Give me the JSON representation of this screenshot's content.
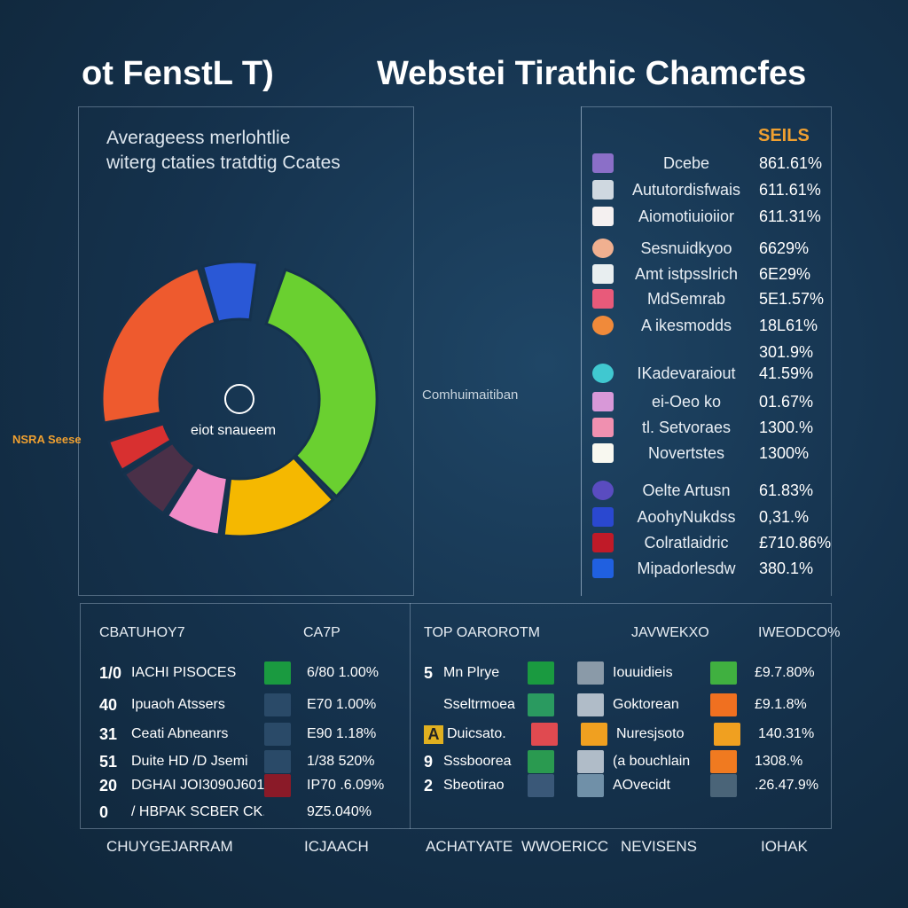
{
  "header": {
    "title_left": "ot FenstL T)",
    "title_right": "Webstei Tirathic Chamcfes"
  },
  "subtitle": [
    "Averageess merlohtlie",
    "witerg ctaties tratdtig Ccates"
  ],
  "mid_label": "Comhuimaitiban",
  "side_label": "NSRA Seese",
  "colors": {
    "accent": "#f0a030",
    "background": "#15324d"
  },
  "chart_data": {
    "type": "pie",
    "center_label": "eiot snaueem",
    "segments": [
      {
        "color": "#ee5a2e",
        "value": 25
      },
      {
        "color": "#2a58d6",
        "value": 7
      },
      {
        "color": "#6ad030",
        "value": 35
      },
      {
        "color": "#f5b800",
        "value": 15
      },
      {
        "color": "#f08cc8",
        "value": 7
      },
      {
        "color": "#4a3048",
        "value": 7
      },
      {
        "color": "#d83030",
        "value": 4
      }
    ]
  },
  "legend": {
    "header": "SEILS",
    "items": [
      {
        "name": "Dcebe",
        "value": "861.61%",
        "color": "#8b6fc8",
        "icon": "square-icon"
      },
      {
        "name": "Aututordisfwais",
        "value": "611.61%",
        "color": "#cfd8e0",
        "icon": "window-icon"
      },
      {
        "name": "Aiomotiuioiior",
        "value": "611.31%",
        "color": "#f4f0f0",
        "icon": "badge-icon"
      },
      {
        "name": "Sesnuidkyoo",
        "value": "6629%",
        "color": "#f0b090",
        "icon": "document-icon"
      },
      {
        "name": "Amt istpsslrich",
        "value": "6E29%",
        "color": "#e8eef0",
        "icon": "card-icon"
      },
      {
        "name": "MdSemrab",
        "value": "5E1.57%",
        "color": "#e85a7a",
        "icon": "pink-icon"
      },
      {
        "name": "A ikesmodds",
        "value": "18L61%",
        "color": "#f08a3a",
        "icon": "list-icon"
      },
      {
        "name": "",
        "value": "301.9%",
        "color": "transparent",
        "icon": ""
      },
      {
        "name": "IKadevaraiout",
        "value": "41.59%",
        "color": "#40c8d0",
        "icon": "circle-icon"
      },
      {
        "name": "ei-Oeo ko",
        "value": "01.67%",
        "color": "#d898d8",
        "icon": "square-icon"
      },
      {
        "name": "tl. Setvoraes",
        "value": "1300.%",
        "color": "#f090b0",
        "icon": "pink-icon"
      },
      {
        "name": "Novertstes",
        "value": "1300%",
        "color": "#f8f8f0",
        "icon": "folder-icon"
      },
      {
        "name": "Oelte Artusn",
        "value": "61.83%",
        "color": "#5a4cc0",
        "icon": "document-icon"
      },
      {
        "name": "AoohyNukdss",
        "value": "0,31.%",
        "color": "#2a48d0",
        "icon": "square-icon"
      },
      {
        "name": "Colratlaidric",
        "value": "£710.86%",
        "color": "#c01a28",
        "icon": "alert-icon"
      },
      {
        "name": "Mipadorlesdw",
        "value": "380.1%",
        "color": "#2060e0",
        "icon": "plane-icon"
      }
    ]
  },
  "bottom_left": {
    "headers": [
      "CBATUHOY7",
      "CA7P"
    ],
    "rows": [
      {
        "rank": "1/0",
        "name": "IACHI PISOCES",
        "value": "6/80 1.00%",
        "color": "#1a9a40"
      },
      {
        "rank": "40",
        "name": "Ipuaoh Atssers",
        "value": "E70 1.00%",
        "color": "#2a4a68"
      },
      {
        "rank": "31",
        "name": "Ceati Abneanrs",
        "value": "E90 1.18%",
        "color": "#2a4a68"
      },
      {
        "rank": "51",
        "name": "Duite HD /D Jsemi",
        "value": "1/38 520%",
        "color": "#2a4a68"
      },
      {
        "rank": "20",
        "name": "DGHAI  JOI3090J601",
        "value": "IP70 .6.09%",
        "color": "#8a1a28"
      },
      {
        "rank": "0",
        "name": "/ HBPAK SCBER CK.",
        "value": "9Z5.040%",
        "color": ""
      }
    ]
  },
  "bottom_right": {
    "headers": [
      "TOP OAROROTM",
      "JAVWEKXO",
      "IWEODCO%"
    ],
    "rows": [
      {
        "rank": "5",
        "name": "Mn Plrye",
        "mid": "Iouuidieis",
        "value": "£9.7.80%",
        "c1": "#1a9a40",
        "c2": "#8a9aa8",
        "c3": "#40b040"
      },
      {
        "rank": "",
        "name": "Sseltrmoea",
        "mid": "Goktorean",
        "value": "£9.1.8%",
        "c1": "#2a9a60",
        "c2": "#b0bcc8",
        "c3": "#f07020"
      },
      {
        "rank": "A",
        "name": "Duicsato.",
        "mid": "Nuresjsoto",
        "value": "140.31%",
        "c1": "#e04a50",
        "c2": "#f0a020",
        "c3": "#f0a020"
      },
      {
        "rank": "9",
        "name": "Sssboorea",
        "mid": "(a bouchlain",
        "value": "1308.%",
        "c1": "#2a9a50",
        "c2": "#b0bcc8",
        "c3": "#f07a20"
      },
      {
        "rank": "2",
        "name": "Sbeotirao",
        "mid": "AOvecidt",
        "value": ".26.47.9%",
        "c1": "#3a5878",
        "c2": "#7090a8",
        "c3": "#4a6478"
      }
    ]
  },
  "footer": [
    "CHUYGEJARRAM",
    "ICJAACH",
    "ACHATYATE",
    "WWOERICC",
    "NEVISENS",
    "IOHAK"
  ]
}
